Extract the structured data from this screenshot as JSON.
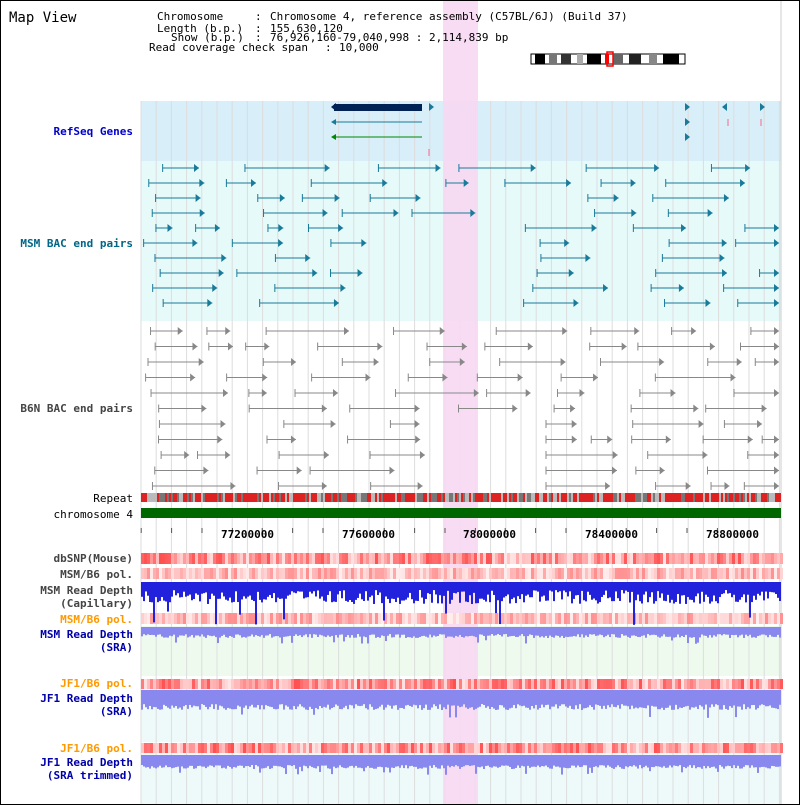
{
  "title": "Map View",
  "info": {
    "chromosome_label": "Chromosome",
    "chromosome_value": "Chromosome 4, reference assembly (C57BL/6J) (Build 37)",
    "length_label": "Length (b.p.)",
    "length_value": "155,630,120",
    "show_label": "Show (b.p.)",
    "show_value": "76,926,160-79,040,998 : 2,114,839 bp",
    "coverage_label": "Read coverage check span",
    "coverage_value": "10,000"
  },
  "tracks": {
    "refseq": "RefSeq Genes",
    "msm_bac": "MSM BAC end pairs",
    "b6n_bac": "B6N BAC end pairs",
    "repeat": "Repeat",
    "chromosome": "chromosome 4",
    "dbsnp": "dbSNP(Mouse)",
    "msm_b6_pol_1": "MSM/B6 pol.",
    "msm_read_depth_cap_1": "MSM Read Depth",
    "msm_read_depth_cap_2": "(Capillary)",
    "msm_b6_pol_2": "MSM/B6 pol.",
    "msm_read_depth_sra_1": "MSM Read Depth",
    "msm_read_depth_sra_2": "(SRA)",
    "jf1_b6_pol_1": "JF1/B6 pol.",
    "jf1_read_depth_sra_1": "JF1 Read Depth",
    "jf1_read_depth_sra_2": "(SRA)",
    "jf1_b6_pol_2": "JF1/B6 pol.",
    "jf1_read_depth_trim_1": "JF1 Read Depth",
    "jf1_read_depth_trim_2": "(SRA trimmed)"
  },
  "axis": {
    "ticks": [
      "77200000",
      "77600000",
      "78000000",
      "78400000",
      "78800000"
    ]
  },
  "colors": {
    "refseq_label": "#0000cc",
    "msm_bac_label": "#006688",
    "b6n_label": "#444444",
    "pol_label": "#ff9900",
    "depth_label": "#0000aa",
    "chromosome_bar": "#006600",
    "highlight": "#f7d8f2",
    "refseq_bg": "#d8eef9",
    "msm_bg": "#e6fafa",
    "gene_dark": "#002255",
    "msm_feature": "#1a7a99",
    "b6n_feature": "#888888",
    "depth_blue": "#2222dd",
    "depth_light": "#8888ee"
  }
}
